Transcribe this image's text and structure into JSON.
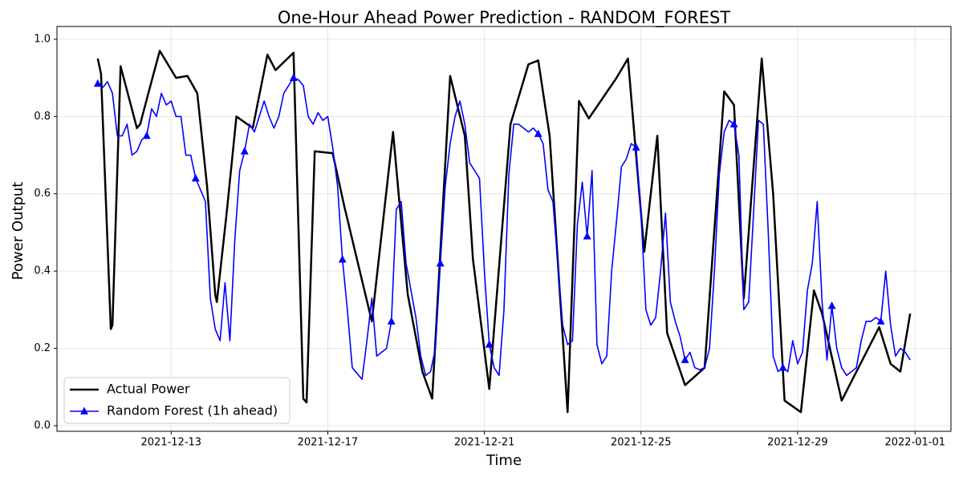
{
  "chart_data": {
    "type": "line",
    "title": "One-Hour Ahead Power Prediction - RANDOM_FOREST",
    "x_label": "Time",
    "y_label": "Power Output",
    "xlim": [
      "2021-12-10 02:00",
      "2022-01-01 22:00"
    ],
    "xticks": [
      "2021-12-13",
      "2021-12-17",
      "2021-12-21",
      "2021-12-25",
      "2021-12-29",
      "2022-01-01"
    ],
    "ylim": [
      -0.0145,
      1.033
    ],
    "yticks": [
      {
        "value": 0,
        "label": "0.0"
      },
      0.2,
      0.4,
      0.6,
      0.8,
      {
        "value": 1,
        "label": "1.0"
      }
    ],
    "grid": true,
    "legend": "lower left",
    "series": [
      {
        "name": "Actual Power",
        "color": "#000000",
        "marker": "none",
        "x": [
          "2021-12-11 03:00",
          "2021-12-11 05:00",
          "2021-12-11 11:00",
          "2021-12-11 12:00",
          "2021-12-11 17:00",
          "2021-12-12 03:00",
          "2021-12-12 05:00",
          "2021-12-12 10:00",
          "2021-12-12 17:00",
          "2021-12-13 03:00",
          "2021-12-13 10:00",
          "2021-12-13 16:00",
          "2021-12-13 22:00",
          "2021-12-14 03:00",
          "2021-12-14 04:00",
          "2021-12-14 10:00",
          "2021-12-14 16:00",
          "2021-12-15 02:00",
          "2021-12-15 11:00",
          "2021-12-15 16:00",
          "2021-12-16 03:00",
          "2021-12-16 09:00",
          "2021-12-16 11:00",
          "2021-12-16 16:00",
          "2021-12-17 03:00",
          "2021-12-17 10:00",
          "2021-12-18 03:00",
          "2021-12-18 16:00",
          "2021-12-19 01:00",
          "2021-12-19 10:00",
          "2021-12-19 16:00",
          "2021-12-20 03:00",
          "2021-12-20 12:00",
          "2021-12-20 17:00",
          "2021-12-21 03:00",
          "2021-12-21 16:00",
          "2021-12-22 03:00",
          "2021-12-22 09:00",
          "2021-12-22 16:00",
          "2021-12-23 03:00",
          "2021-12-23 10:00",
          "2021-12-23 16:00",
          "2021-12-24 09:00",
          "2021-12-24 16:00",
          "2021-12-25 02:00",
          "2021-12-25 10:00",
          "2021-12-25 16:00",
          "2021-12-26 03:00",
          "2021-12-26 15:00",
          "2021-12-27 03:00",
          "2021-12-27 09:00",
          "2021-12-27 15:00",
          "2021-12-28 02:00",
          "2021-12-28 09:00",
          "2021-12-28 16:00",
          "2021-12-29 02:00",
          "2021-12-29 10:00",
          "2021-12-29 15:00",
          "2021-12-30 03:00",
          "2021-12-31 02:00",
          "2021-12-31 09:00",
          "2021-12-31 15:00",
          "2021-12-31 21:00"
        ],
        "values": [
          0.95,
          0.91,
          0.25,
          0.26,
          0.93,
          0.77,
          0.78,
          0.86,
          0.97,
          0.9,
          0.905,
          0.86,
          0.62,
          0.34,
          0.32,
          0.55,
          0.8,
          0.77,
          0.96,
          0.92,
          0.965,
          0.07,
          0.06,
          0.71,
          0.705,
          0.57,
          0.27,
          0.76,
          0.34,
          0.14,
          0.07,
          0.905,
          0.75,
          0.43,
          0.095,
          0.78,
          0.935,
          0.945,
          0.75,
          0.035,
          0.84,
          0.795,
          0.9,
          0.95,
          0.45,
          0.75,
          0.24,
          0.105,
          0.15,
          0.865,
          0.83,
          0.33,
          0.95,
          0.6,
          0.065,
          0.035,
          0.35,
          0.29,
          0.065,
          0.255,
          0.16,
          0.14,
          0.29
        ]
      },
      {
        "name": "Random Forest (1h ahead)",
        "color": "#0000ff",
        "marker": "triangle",
        "markevery": 10,
        "x": [
          "2021-12-11 03:00",
          "2021-12-11 06:00",
          "2021-12-11 09:00",
          "2021-12-11 12:00",
          "2021-12-11 15:00",
          "2021-12-11 18:00",
          "2021-12-11 21:00",
          "2021-12-12 00:00",
          "2021-12-12 03:00",
          "2021-12-12 06:00",
          "2021-12-12 09:00",
          "2021-12-12 12:00",
          "2021-12-12 15:00",
          "2021-12-12 18:00",
          "2021-12-12 21:00",
          "2021-12-13 00:00",
          "2021-12-13 03:00",
          "2021-12-13 06:00",
          "2021-12-13 09:00",
          "2021-12-13 12:00",
          "2021-12-13 15:00",
          "2021-12-13 18:00",
          "2021-12-13 21:00",
          "2021-12-14 00:00",
          "2021-12-14 03:00",
          "2021-12-14 06:00",
          "2021-12-14 09:00",
          "2021-12-14 12:00",
          "2021-12-14 15:00",
          "2021-12-14 18:00",
          "2021-12-14 21:00",
          "2021-12-15 00:00",
          "2021-12-15 03:00",
          "2021-12-15 06:00",
          "2021-12-15 09:00",
          "2021-12-15 12:00",
          "2021-12-15 15:00",
          "2021-12-15 18:00",
          "2021-12-15 21:00",
          "2021-12-16 00:00",
          "2021-12-16 03:00",
          "2021-12-16 06:00",
          "2021-12-16 09:00",
          "2021-12-16 12:00",
          "2021-12-16 15:00",
          "2021-12-16 18:00",
          "2021-12-16 21:00",
          "2021-12-17 00:00",
          "2021-12-17 03:00",
          "2021-12-17 06:00",
          "2021-12-17 09:00",
          "2021-12-17 12:00",
          "2021-12-17 15:00",
          "2021-12-17 18:00",
          "2021-12-17 21:00",
          "2021-12-18 00:00",
          "2021-12-18 03:00",
          "2021-12-18 06:00",
          "2021-12-18 09:00",
          "2021-12-18 12:00",
          "2021-12-18 15:00",
          "2021-12-18 18:00",
          "2021-12-18 21:00",
          "2021-12-19 00:00",
          "2021-12-19 03:00",
          "2021-12-19 06:00",
          "2021-12-19 09:00",
          "2021-12-19 12:00",
          "2021-12-19 15:00",
          "2021-12-19 18:00",
          "2021-12-19 21:00",
          "2021-12-20 00:00",
          "2021-12-20 03:00",
          "2021-12-20 06:00",
          "2021-12-20 09:00",
          "2021-12-20 12:00",
          "2021-12-20 15:00",
          "2021-12-20 18:00",
          "2021-12-20 21:00",
          "2021-12-21 00:00",
          "2021-12-21 03:00",
          "2021-12-21 06:00",
          "2021-12-21 09:00",
          "2021-12-21 12:00",
          "2021-12-21 15:00",
          "2021-12-21 18:00",
          "2021-12-21 21:00",
          "2021-12-22 00:00",
          "2021-12-22 03:00",
          "2021-12-22 06:00",
          "2021-12-22 09:00",
          "2021-12-22 12:00",
          "2021-12-22 15:00",
          "2021-12-22 18:00",
          "2021-12-22 21:00",
          "2021-12-23 00:00",
          "2021-12-23 03:00",
          "2021-12-23 06:00",
          "2021-12-23 09:00",
          "2021-12-23 12:00",
          "2021-12-23 15:00",
          "2021-12-23 18:00",
          "2021-12-23 21:00",
          "2021-12-24 00:00",
          "2021-12-24 03:00",
          "2021-12-24 06:00",
          "2021-12-24 09:00",
          "2021-12-24 12:00",
          "2021-12-24 15:00",
          "2021-12-24 18:00",
          "2021-12-24 21:00",
          "2021-12-25 00:00",
          "2021-12-25 03:00",
          "2021-12-25 06:00",
          "2021-12-25 09:00",
          "2021-12-25 12:00",
          "2021-12-25 15:00",
          "2021-12-25 18:00",
          "2021-12-25 21:00",
          "2021-12-26 00:00",
          "2021-12-26 03:00",
          "2021-12-26 06:00",
          "2021-12-26 09:00",
          "2021-12-26 12:00",
          "2021-12-26 15:00",
          "2021-12-26 18:00",
          "2021-12-26 21:00",
          "2021-12-27 00:00",
          "2021-12-27 03:00",
          "2021-12-27 06:00",
          "2021-12-27 09:00",
          "2021-12-27 12:00",
          "2021-12-27 15:00",
          "2021-12-27 18:00",
          "2021-12-27 21:00",
          "2021-12-28 00:00",
          "2021-12-28 03:00",
          "2021-12-28 06:00",
          "2021-12-28 09:00",
          "2021-12-28 12:00",
          "2021-12-28 15:00",
          "2021-12-28 18:00",
          "2021-12-28 21:00",
          "2021-12-29 00:00",
          "2021-12-29 03:00",
          "2021-12-29 06:00",
          "2021-12-29 09:00",
          "2021-12-29 12:00",
          "2021-12-29 15:00",
          "2021-12-29 18:00",
          "2021-12-29 21:00",
          "2021-12-30 00:00",
          "2021-12-30 03:00",
          "2021-12-30 06:00",
          "2021-12-30 09:00",
          "2021-12-30 12:00",
          "2021-12-30 15:00",
          "2021-12-30 18:00",
          "2021-12-30 21:00",
          "2021-12-31 00:00",
          "2021-12-31 03:00",
          "2021-12-31 06:00",
          "2021-12-31 09:00",
          "2021-12-31 12:00",
          "2021-12-31 15:00",
          "2021-12-31 18:00",
          "2021-12-31 21:00"
        ],
        "values": [
          0.885,
          0.875,
          0.89,
          0.86,
          0.75,
          0.75,
          0.78,
          0.7,
          0.71,
          0.74,
          0.75,
          0.82,
          0.8,
          0.86,
          0.83,
          0.84,
          0.8,
          0.8,
          0.7,
          0.7,
          0.64,
          0.61,
          0.58,
          0.33,
          0.25,
          0.22,
          0.37,
          0.22,
          0.48,
          0.66,
          0.71,
          0.78,
          0.76,
          0.8,
          0.84,
          0.8,
          0.77,
          0.8,
          0.86,
          0.88,
          0.9,
          0.895,
          0.88,
          0.8,
          0.78,
          0.81,
          0.79,
          0.8,
          0.72,
          0.62,
          0.43,
          0.3,
          0.15,
          0.135,
          0.12,
          0.22,
          0.33,
          0.18,
          0.19,
          0.2,
          0.27,
          0.56,
          0.58,
          0.42,
          0.35,
          0.28,
          0.18,
          0.13,
          0.14,
          0.2,
          0.42,
          0.62,
          0.73,
          0.8,
          0.84,
          0.78,
          0.68,
          0.66,
          0.64,
          0.4,
          0.21,
          0.15,
          0.13,
          0.3,
          0.65,
          0.78,
          0.78,
          0.77,
          0.76,
          0.77,
          0.755,
          0.73,
          0.61,
          0.58,
          0.42,
          0.26,
          0.21,
          0.22,
          0.52,
          0.63,
          0.49,
          0.66,
          0.21,
          0.16,
          0.18,
          0.4,
          0.53,
          0.67,
          0.69,
          0.73,
          0.72,
          0.55,
          0.3,
          0.26,
          0.28,
          0.4,
          0.55,
          0.32,
          0.27,
          0.23,
          0.17,
          0.19,
          0.15,
          0.145,
          0.15,
          0.2,
          0.4,
          0.65,
          0.76,
          0.79,
          0.78,
          0.7,
          0.3,
          0.32,
          0.55,
          0.79,
          0.78,
          0.5,
          0.18,
          0.14,
          0.15,
          0.14,
          0.22,
          0.16,
          0.19,
          0.35,
          0.42,
          0.58,
          0.32,
          0.17,
          0.31,
          0.2,
          0.15,
          0.13,
          0.14,
          0.15,
          0.22,
          0.27,
          0.27,
          0.28,
          0.27,
          0.4,
          0.26,
          0.18,
          0.2,
          0.19,
          0.17
        ]
      }
    ]
  }
}
